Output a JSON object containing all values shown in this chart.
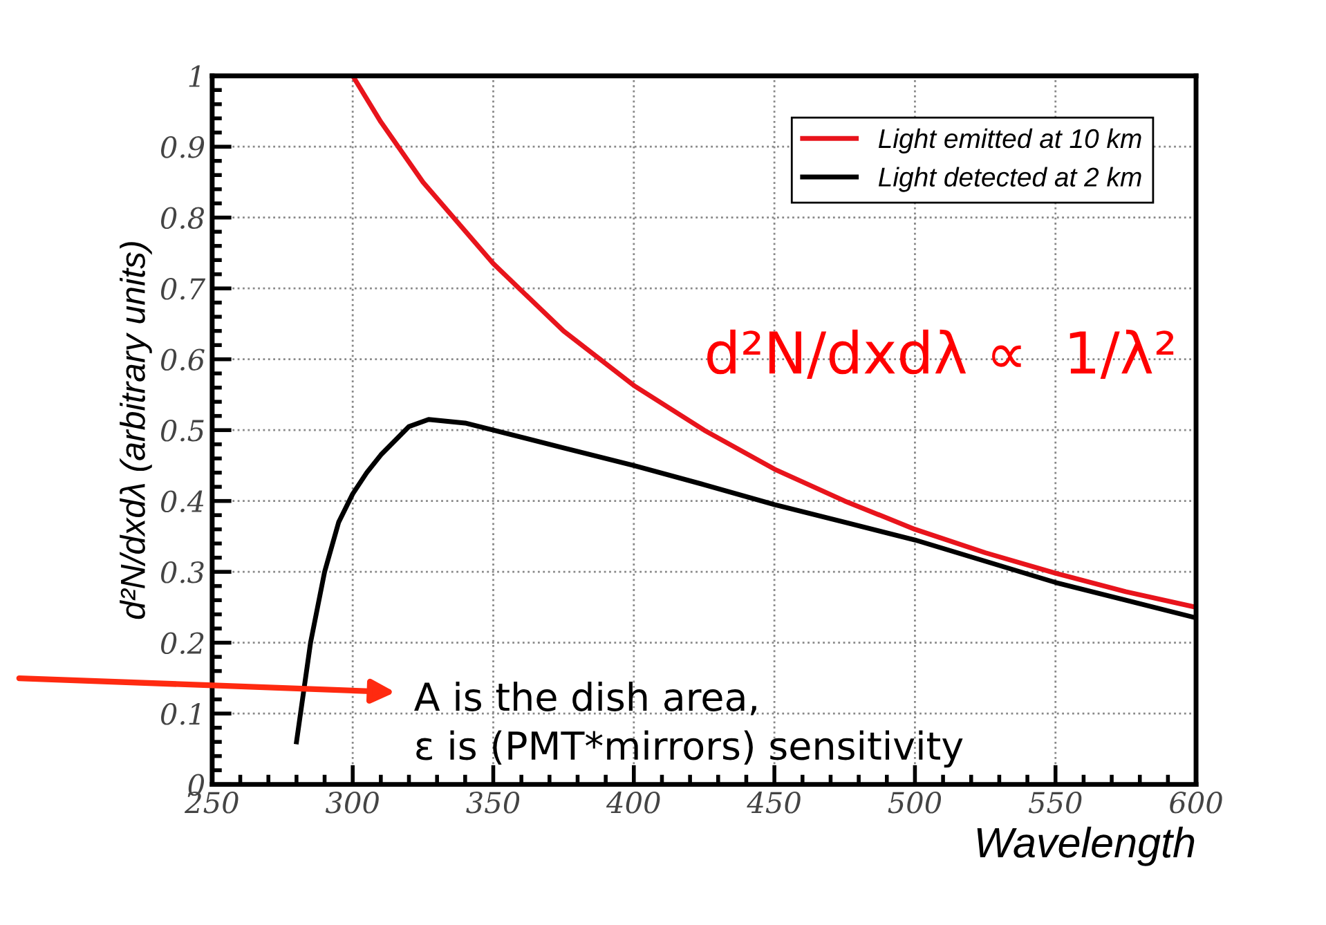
{
  "chart_data": {
    "type": "line",
    "xlabel": "Wavelength",
    "ylabel": "d²N/dxdλ (arbitrary units)",
    "xlim": [
      250,
      600
    ],
    "xticks": [
      250,
      300,
      350,
      400,
      450,
      500,
      550,
      600
    ],
    "ylim": [
      0,
      1
    ],
    "yticks": [
      0,
      0.1,
      0.2,
      0.3,
      0.4,
      0.5,
      0.6,
      0.7,
      0.8,
      0.9,
      1
    ],
    "grid": true,
    "legend": "top right",
    "line_style": "solid",
    "marker": "none",
    "series": [
      {
        "name": "Light emitted at 10 km",
        "color": "#e8141c",
        "x": [
          300,
          310,
          325,
          350,
          375,
          400,
          425,
          450,
          475,
          500,
          525,
          550,
          575,
          600
        ],
        "values": [
          1.0,
          0.935,
          0.85,
          0.735,
          0.64,
          0.563,
          0.5,
          0.445,
          0.4,
          0.36,
          0.327,
          0.298,
          0.272,
          0.25
        ]
      },
      {
        "name": "Light detected at 2 km",
        "color": "#000000",
        "x": [
          280,
          285,
          290,
          295,
          300,
          305,
          310,
          320,
          327,
          340,
          350,
          375,
          400,
          425,
          450,
          475,
          500,
          525,
          550,
          575,
          600
        ],
        "values": [
          0.06,
          0.2,
          0.3,
          0.37,
          0.41,
          0.44,
          0.465,
          0.505,
          0.515,
          0.51,
          0.5,
          0.475,
          0.45,
          0.423,
          0.395,
          0.37,
          0.345,
          0.315,
          0.285,
          0.26,
          0.235
        ]
      }
    ],
    "annotations": [
      "d²N/dxdλ ∝  1/λ²",
      "A is the dish area,\nε is (PMT*mirrors) sensitivity"
    ]
  }
}
